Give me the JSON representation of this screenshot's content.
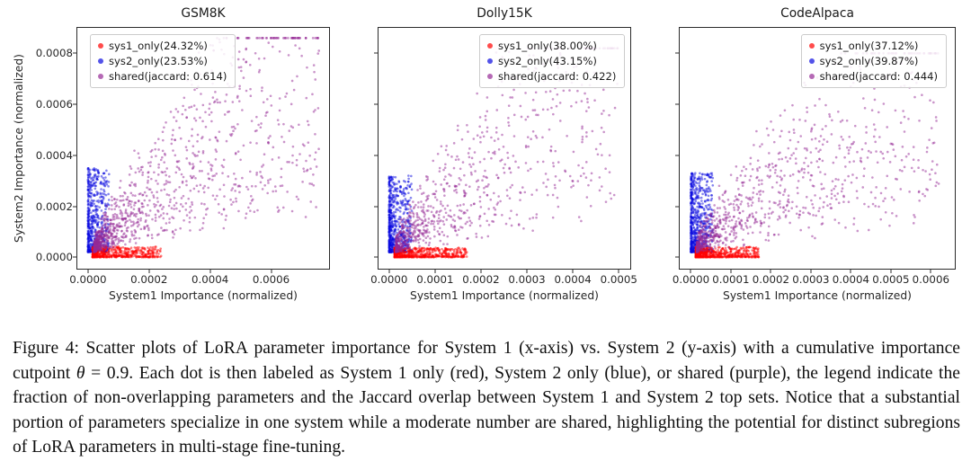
{
  "figure": {
    "caption": {
      "prefix": "Figure 4: Scatter plots of LoRA parameter importance for System 1 (x-axis) vs. System 2 (y-axis) with a cumulative importance cutpoint ",
      "theta": "θ",
      "eq": " = 0.9",
      "suffix": ". Each dot is then labeled as System 1 only (red), System 2 only (blue), or shared (purple), the legend indicate the fraction of non-overlapping parameters and the Jaccard overlap between System 1 and System 2 top sets. Notice that a substantial portion of parameters specialize in one system while a moderate number are shared, highlighting the potential for distinct subregions of LoRA parameters in multi-stage fine-tuning."
    }
  },
  "colors": {
    "red": "#ff0000",
    "blue": "#0a0ae0",
    "purple": "#952995"
  },
  "point_alpha": 0.5,
  "chart_data": [
    {
      "type": "scatter",
      "title": "GSM8K",
      "xlabel": "System1 Importance (normalized)",
      "ylabel": "System2 Importance (normalized)",
      "xlim": [
        -3.5e-05,
        0.00079
      ],
      "ylim": [
        -4.5e-05,
        0.0009
      ],
      "xticks": [
        {
          "v": 0,
          "label": "0.0000"
        },
        {
          "v": 0.0002,
          "label": "0.0002"
        },
        {
          "v": 0.0004,
          "label": "0.0004"
        },
        {
          "v": 0.0006,
          "label": "0.0006"
        }
      ],
      "yticks": [
        {
          "v": 0,
          "label": "0.0000"
        },
        {
          "v": 0.0002,
          "label": "0.0002"
        },
        {
          "v": 0.0004,
          "label": "0.0004"
        },
        {
          "v": 0.0006,
          "label": "0.0006"
        },
        {
          "v": 0.0008,
          "label": "0.0008"
        }
      ],
      "show_ytick_labels": true,
      "legend_pos": "upper-left",
      "legend": [
        {
          "label": "sys1_only(24.32%)",
          "color_key": "red"
        },
        {
          "label": "sys2_only(23.53%)",
          "color_key": "blue"
        },
        {
          "label": "shared(jaccard: 0.614)",
          "color_key": "purple"
        }
      ],
      "clusters": [
        {
          "color_key": "blue",
          "n": 540,
          "x": [
            0,
            7e-05,
            2.2
          ],
          "y": [
            2e-05,
            0.00035,
            1.7
          ],
          "corr": 0
        },
        {
          "color_key": "red",
          "n": 500,
          "x": [
            1.5e-05,
            0.00024,
            2.1
          ],
          "y": [
            0,
            4.2e-05,
            1.8
          ],
          "corr": 0
        },
        {
          "color_key": "purple",
          "n": 1150,
          "x": [
            2e-05,
            0.00076,
            2.0
          ],
          "y": [
            2e-05,
            0.00086,
            2.0
          ],
          "corr": 0.8
        }
      ]
    },
    {
      "type": "scatter",
      "title": "Dolly15K",
      "xlabel": "System1 Importance (normalized)",
      "xlim": [
        -2.3e-05,
        0.000525
      ],
      "ylim": [
        -4.5e-05,
        0.0009
      ],
      "xticks": [
        {
          "v": 0,
          "label": "0.0000"
        },
        {
          "v": 0.0001,
          "label": "0.0001"
        },
        {
          "v": 0.0002,
          "label": "0.0002"
        },
        {
          "v": 0.0003,
          "label": "0.0003"
        },
        {
          "v": 0.0004,
          "label": "0.0004"
        },
        {
          "v": 0.0005,
          "label": "0.0005"
        }
      ],
      "yticks": [
        {
          "v": 0,
          "label": "0.0000"
        },
        {
          "v": 0.0002,
          "label": "0.0002"
        },
        {
          "v": 0.0004,
          "label": "0.0004"
        },
        {
          "v": 0.0006,
          "label": "0.0006"
        },
        {
          "v": 0.0008,
          "label": "0.0008"
        }
      ],
      "show_ytick_labels": false,
      "legend_pos": "upper-center-right",
      "legend": [
        {
          "label": "sys1_only(38.00%)",
          "color_key": "red"
        },
        {
          "label": "sys2_only(43.15%)",
          "color_key": "blue"
        },
        {
          "label": "shared(jaccard: 0.422)",
          "color_key": "purple"
        }
      ],
      "clusters": [
        {
          "color_key": "blue",
          "n": 620,
          "x": [
            0,
            5e-05,
            2.2
          ],
          "y": [
            2e-05,
            0.00032,
            1.7
          ],
          "corr": 0
        },
        {
          "color_key": "red",
          "n": 560,
          "x": [
            1.2e-05,
            0.00017,
            2.0
          ],
          "y": [
            0,
            3.8e-05,
            1.8
          ],
          "corr": 0
        },
        {
          "color_key": "purple",
          "n": 820,
          "x": [
            1.5e-05,
            0.0005,
            2.0
          ],
          "y": [
            2e-05,
            0.00082,
            2.0
          ],
          "corr": 0.75
        }
      ]
    },
    {
      "type": "scatter",
      "title": "CodeAlpaca",
      "xlabel": "System1 Importance (normalized)",
      "xlim": [
        -2.8e-05,
        0.00066
      ],
      "ylim": [
        -4.5e-05,
        0.0009
      ],
      "xticks": [
        {
          "v": 0,
          "label": "0.0000"
        },
        {
          "v": 0.0001,
          "label": "0.0001"
        },
        {
          "v": 0.0002,
          "label": "0.0002"
        },
        {
          "v": 0.0003,
          "label": "0.0003"
        },
        {
          "v": 0.0004,
          "label": "0.0004"
        },
        {
          "v": 0.0005,
          "label": "0.0005"
        },
        {
          "v": 0.0006,
          "label": "0.0006"
        }
      ],
      "yticks": [
        {
          "v": 0,
          "label": "0.0000"
        },
        {
          "v": 0.0002,
          "label": "0.0002"
        },
        {
          "v": 0.0004,
          "label": "0.0004"
        },
        {
          "v": 0.0006,
          "label": "0.0006"
        },
        {
          "v": 0.0008,
          "label": "0.0008"
        }
      ],
      "show_ytick_labels": false,
      "legend_pos": "upper-right",
      "legend": [
        {
          "label": "sys1_only(37.12%)",
          "color_key": "red"
        },
        {
          "label": "sys2_only(39.87%)",
          "color_key": "blue"
        },
        {
          "label": "shared(jaccard: 0.444)",
          "color_key": "purple"
        }
      ],
      "clusters": [
        {
          "color_key": "blue",
          "n": 640,
          "x": [
            0,
            5.5e-05,
            2.2
          ],
          "y": [
            2e-05,
            0.00033,
            1.7
          ],
          "corr": 0
        },
        {
          "color_key": "red",
          "n": 580,
          "x": [
            1.2e-05,
            0.00017,
            2.0
          ],
          "y": [
            0,
            4e-05,
            1.8
          ],
          "corr": 0
        },
        {
          "color_key": "purple",
          "n": 900,
          "x": [
            1.5e-05,
            0.00062,
            2.0
          ],
          "y": [
            2e-05,
            0.0008,
            2.0
          ],
          "corr": 0.75
        }
      ]
    }
  ]
}
